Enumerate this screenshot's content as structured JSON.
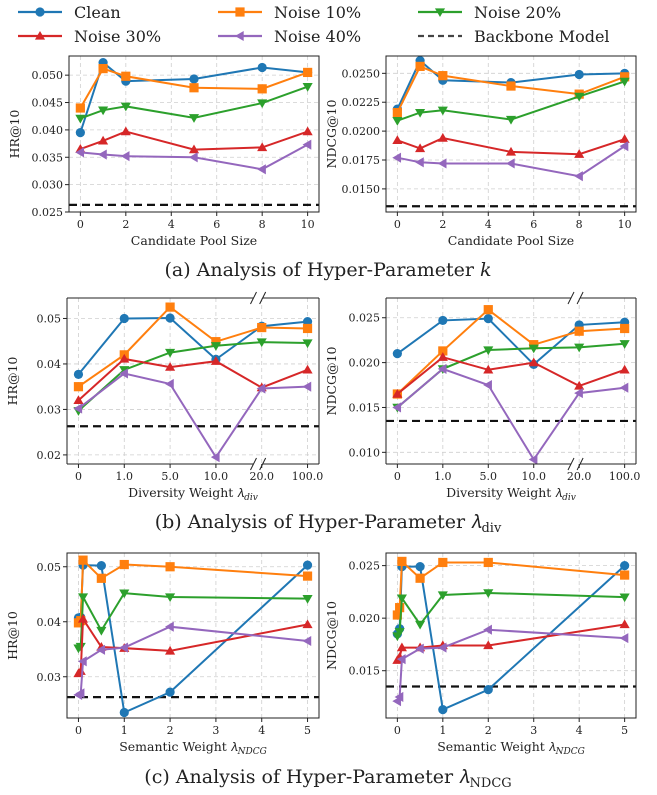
{
  "legend": {
    "items": [
      {
        "label": "Clean",
        "color": "#1f77b4",
        "marker": "circle",
        "dash": false
      },
      {
        "label": "Noise 10%",
        "color": "#ff7f0e",
        "marker": "square",
        "dash": false
      },
      {
        "label": "Noise 20%",
        "color": "#2ca02c",
        "marker": "triangle-down",
        "dash": false
      },
      {
        "label": "Noise 30%",
        "color": "#d62728",
        "marker": "triangle-up",
        "dash": false
      },
      {
        "label": "Noise 40%",
        "color": "#9467bd",
        "marker": "triangle-left",
        "dash": false
      },
      {
        "label": "Backbone Model",
        "color": "#444444",
        "marker": "none",
        "dash": true
      }
    ]
  },
  "captions": {
    "a": "(a) Analysis of Hyper-Parameter 𝑘",
    "b_prefix": "(b) Analysis of Hyper-Parameter 𝜆",
    "b_sub": "div",
    "c_prefix": "(c) Analysis of Hyper-Parameter 𝜆",
    "c_sub": "NDCG"
  },
  "chart_data": [
    {
      "id": "a-hr",
      "type": "line",
      "xlabel": "Candidate Pool Size",
      "ylabel": "HR@10",
      "x": [
        0,
        1,
        2,
        5,
        8,
        10
      ],
      "xlim": [
        -0.5,
        10.5
      ],
      "ylim": [
        0.025,
        0.0535
      ],
      "xticks": [
        0,
        2,
        4,
        6,
        8,
        10
      ],
      "xtick_labels": [
        "0",
        "2",
        "4",
        "6",
        "8",
        "10"
      ],
      "yticks": [
        0.025,
        0.03,
        0.035,
        0.04,
        0.045,
        0.05
      ],
      "ytick_labels": [
        "0.025",
        "0.030",
        "0.035",
        "0.040",
        "0.045",
        "0.050"
      ],
      "baseline": 0.0263,
      "grid": true,
      "series": [
        {
          "name": "Clean",
          "values": [
            0.0395,
            0.0523,
            0.0489,
            0.0493,
            0.0514,
            0.0505
          ]
        },
        {
          "name": "Noise 10%",
          "values": [
            0.044,
            0.0512,
            0.0498,
            0.0477,
            0.0475,
            0.0505
          ]
        },
        {
          "name": "Noise 20%",
          "values": [
            0.0421,
            0.0436,
            0.0443,
            0.0422,
            0.0449,
            0.0479
          ]
        },
        {
          "name": "Noise 30%",
          "values": [
            0.0365,
            0.038,
            0.0397,
            0.0364,
            0.0368,
            0.0397
          ]
        },
        {
          "name": "Noise 40%",
          "values": [
            0.0359,
            0.0355,
            0.0352,
            0.035,
            0.0328,
            0.0373
          ]
        }
      ]
    },
    {
      "id": "a-ndcg",
      "type": "line",
      "xlabel": "Candidate Pool Size",
      "ylabel": "NDCG@10",
      "x": [
        0,
        1,
        2,
        5,
        8,
        10
      ],
      "xlim": [
        -0.5,
        10.5
      ],
      "ylim": [
        0.013,
        0.0265
      ],
      "xticks": [
        0,
        2,
        4,
        6,
        8,
        10
      ],
      "xtick_labels": [
        "0",
        "2",
        "4",
        "6",
        "8",
        "10"
      ],
      "yticks": [
        0.015,
        0.0175,
        0.02,
        0.0225,
        0.025
      ],
      "ytick_labels": [
        "0.0150",
        "0.0175",
        "0.0200",
        "0.0225",
        "0.0250"
      ],
      "baseline": 0.0135,
      "grid": true,
      "series": [
        {
          "name": "Clean",
          "values": [
            0.0219,
            0.0261,
            0.0244,
            0.0242,
            0.0249,
            0.025
          ]
        },
        {
          "name": "Noise 10%",
          "values": [
            0.0216,
            0.0256,
            0.0248,
            0.0239,
            0.0232,
            0.0247
          ]
        },
        {
          "name": "Noise 20%",
          "values": [
            0.0209,
            0.0216,
            0.0218,
            0.021,
            0.023,
            0.0243
          ]
        },
        {
          "name": "Noise 30%",
          "values": [
            0.0192,
            0.0185,
            0.0194,
            0.0182,
            0.018,
            0.0193
          ]
        },
        {
          "name": "Noise 40%",
          "values": [
            0.0177,
            0.0173,
            0.0172,
            0.0172,
            0.0161,
            0.0187
          ]
        }
      ]
    },
    {
      "id": "b-hr",
      "type": "line",
      "xlabel": "Diversity Weight 𝜆",
      "xlabel_sub": "div",
      "ylabel": "HR@10",
      "x": [
        0,
        1,
        2,
        3,
        4,
        5
      ],
      "xlim": [
        -0.25,
        5.25
      ],
      "ylim": [
        0.018,
        0.0545
      ],
      "xticks": [
        0,
        1,
        2,
        3,
        4,
        5
      ],
      "xtick_labels": [
        "0",
        "1.0",
        "5.0",
        "10.0",
        "20.0",
        "100.0"
      ],
      "yticks": [
        0.02,
        0.03,
        0.04,
        0.05
      ],
      "ytick_labels": [
        "0.02",
        "0.03",
        "0.04",
        "0.05"
      ],
      "baseline": 0.0263,
      "grid": true,
      "axis_break": true,
      "series": [
        {
          "name": "Clean",
          "values": [
            0.0377,
            0.05,
            0.0501,
            0.041,
            0.0483,
            0.0493
          ]
        },
        {
          "name": "Noise 10%",
          "values": [
            0.035,
            0.042,
            0.0525,
            0.0449,
            0.048,
            0.0478
          ]
        },
        {
          "name": "Noise 20%",
          "values": [
            0.0297,
            0.0387,
            0.0425,
            0.044,
            0.0448,
            0.0446
          ]
        },
        {
          "name": "Noise 30%",
          "values": [
            0.032,
            0.0411,
            0.0393,
            0.0406,
            0.0348,
            0.0387
          ]
        },
        {
          "name": "Noise 40%",
          "values": [
            0.0302,
            0.0379,
            0.0356,
            0.0195,
            0.0346,
            0.035
          ]
        }
      ]
    },
    {
      "id": "b-ndcg",
      "type": "line",
      "xlabel": "Diversity Weight 𝜆",
      "xlabel_sub": "div",
      "ylabel": "NDCG@10",
      "x": [
        0,
        1,
        2,
        3,
        4,
        5
      ],
      "xlim": [
        -0.25,
        5.25
      ],
      "ylim": [
        0.0087,
        0.0272
      ],
      "xticks": [
        0,
        1,
        2,
        3,
        4,
        5
      ],
      "xtick_labels": [
        "0",
        "1.0",
        "5.0",
        "10.0",
        "20.0",
        "100.0"
      ],
      "yticks": [
        0.01,
        0.015,
        0.02,
        0.025
      ],
      "ytick_labels": [
        "0.010",
        "0.015",
        "0.020",
        "0.025"
      ],
      "baseline": 0.0135,
      "grid": true,
      "axis_break": true,
      "series": [
        {
          "name": "Clean",
          "values": [
            0.021,
            0.0247,
            0.0249,
            0.0198,
            0.0242,
            0.0245
          ]
        },
        {
          "name": "Noise 10%",
          "values": [
            0.0165,
            0.0213,
            0.0259,
            0.022,
            0.0235,
            0.0238
          ]
        },
        {
          "name": "Noise 20%",
          "values": [
            0.015,
            0.0193,
            0.0214,
            0.0216,
            0.0217,
            0.0221
          ]
        },
        {
          "name": "Noise 30%",
          "values": [
            0.0165,
            0.0206,
            0.0192,
            0.02,
            0.0174,
            0.0192
          ]
        },
        {
          "name": "Noise 40%",
          "values": [
            0.015,
            0.0193,
            0.0175,
            0.0092,
            0.0166,
            0.0172
          ]
        }
      ]
    },
    {
      "id": "c-hr",
      "type": "line",
      "xlabel": "Semantic Weight 𝜆",
      "xlabel_sub": "NDCG",
      "ylabel": "HR@10",
      "x": [
        0,
        0.05,
        0.1,
        0.5,
        1,
        2,
        5
      ],
      "xlim": [
        -0.25,
        5.25
      ],
      "ylim": [
        0.0225,
        0.0525
      ],
      "xticks": [
        0,
        1,
        2,
        3,
        4,
        5
      ],
      "xtick_labels": [
        "0",
        "1",
        "2",
        "3",
        "4",
        "5"
      ],
      "yticks": [
        0.03,
        0.04,
        0.05
      ],
      "ytick_labels": [
        "0.03",
        "0.04",
        "0.05"
      ],
      "baseline": 0.0263,
      "grid": true,
      "series": [
        {
          "name": "Clean",
          "values": [
            0.0407,
            0.0408,
            0.0503,
            0.0502,
            0.0235,
            0.0272,
            0.0503
          ]
        },
        {
          "name": "Noise 10%",
          "values": [
            0.0398,
            0.0402,
            0.0512,
            0.0479,
            0.0504,
            0.05,
            0.0483
          ]
        },
        {
          "name": "Noise 20%",
          "values": [
            0.0352,
            0.0355,
            0.0445,
            0.0384,
            0.0452,
            0.0445,
            0.0442
          ]
        },
        {
          "name": "Noise 30%",
          "values": [
            0.0306,
            0.031,
            0.0405,
            0.0354,
            0.0352,
            0.0347,
            0.0395
          ]
        },
        {
          "name": "Noise 40%",
          "values": [
            0.0267,
            0.027,
            0.0328,
            0.0349,
            0.0353,
            0.0391,
            0.0365
          ]
        }
      ]
    },
    {
      "id": "c-ndcg",
      "type": "line",
      "xlabel": "Semantic Weight 𝜆",
      "xlabel_sub": "NDCG",
      "ylabel": "NDCG@10",
      "x": [
        0,
        0.05,
        0.1,
        0.5,
        1,
        2,
        5
      ],
      "xlim": [
        -0.25,
        5.25
      ],
      "ylim": [
        0.0105,
        0.0262
      ],
      "xticks": [
        0,
        1,
        2,
        3,
        4,
        5
      ],
      "xtick_labels": [
        "0",
        "1",
        "2",
        "3",
        "4",
        "5"
      ],
      "yticks": [
        0.015,
        0.02,
        0.025
      ],
      "ytick_labels": [
        "0.015",
        "0.020",
        "0.025"
      ],
      "baseline": 0.0135,
      "grid": true,
      "series": [
        {
          "name": "Clean",
          "values": [
            0.0185,
            0.019,
            0.0249,
            0.0249,
            0.0113,
            0.0132,
            0.025
          ]
        },
        {
          "name": "Noise 10%",
          "values": [
            0.0203,
            0.021,
            0.0254,
            0.0238,
            0.0253,
            0.0253,
            0.0241
          ]
        },
        {
          "name": "Noise 20%",
          "values": [
            0.0183,
            0.0187,
            0.0219,
            0.0194,
            0.0222,
            0.0224,
            0.022
          ]
        },
        {
          "name": "Noise 30%",
          "values": [
            0.016,
            0.0163,
            0.0172,
            0.0172,
            0.0174,
            0.0174,
            0.0194
          ]
        },
        {
          "name": "Noise 40%",
          "values": [
            0.0121,
            0.0125,
            0.0161,
            0.0171,
            0.0172,
            0.0189,
            0.0181
          ]
        }
      ]
    }
  ]
}
